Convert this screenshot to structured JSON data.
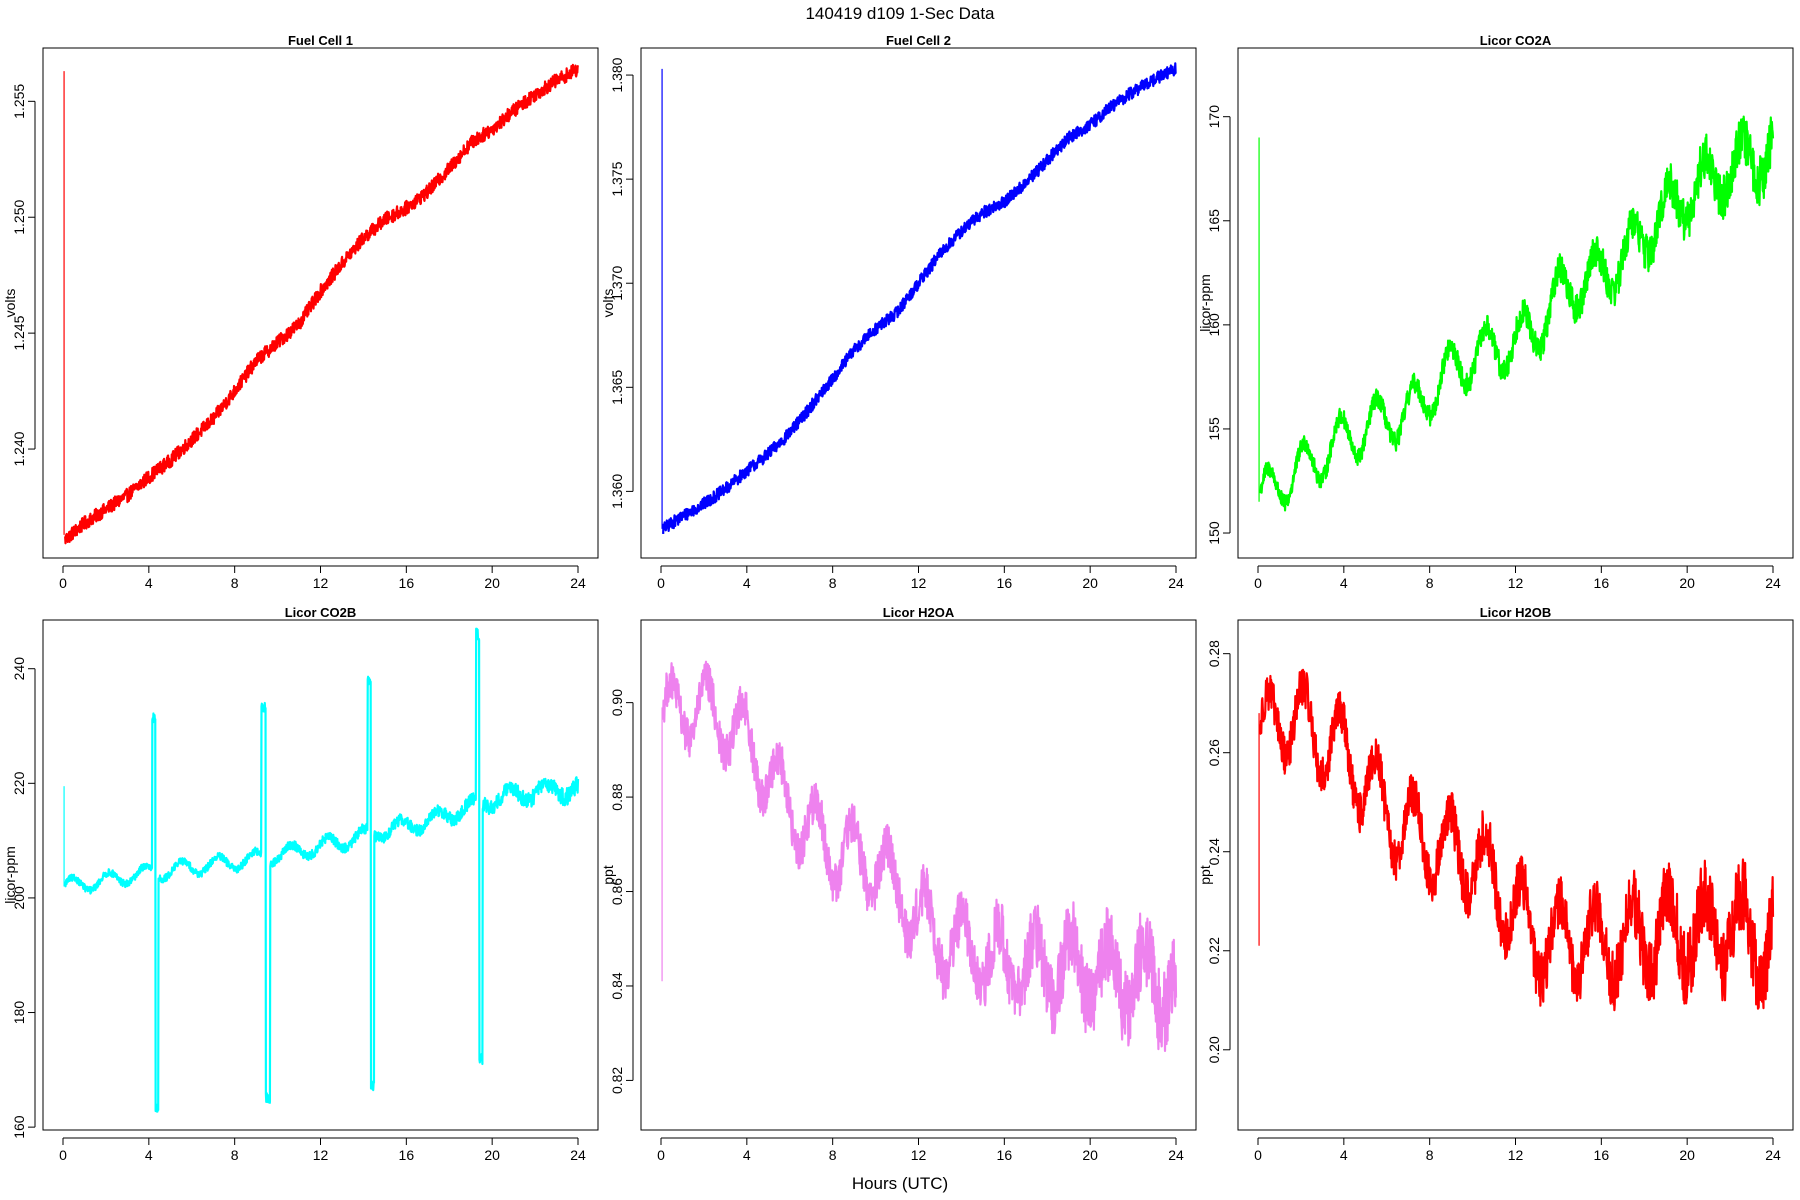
{
  "figure": {
    "title": "140419   d109   1-Sec Data",
    "xlabel": "Hours (UTC)"
  },
  "chart_data": [
    {
      "type": "line",
      "title": "Fuel Cell 1",
      "ylabel": "volts",
      "color": "#ff0000",
      "xlim": [
        0,
        24
      ],
      "ylim": [
        1.2353,
        1.2573
      ],
      "xticks": [
        0,
        4,
        8,
        12,
        16,
        20,
        24
      ],
      "yticks": [
        1.24,
        1.245,
        1.25,
        1.255
      ],
      "spike": {
        "x": 0.05,
        "y_from": 1.2363,
        "y_to": 1.2563
      },
      "x": [
        0.1,
        1,
        2,
        3,
        4,
        5,
        6,
        7,
        8,
        9,
        10,
        11,
        12,
        13,
        14,
        15,
        16,
        17,
        18,
        19,
        20,
        21,
        22,
        23,
        24
      ],
      "y": [
        1.2361,
        1.2368,
        1.2374,
        1.238,
        1.2388,
        1.2395,
        1.2404,
        1.2413,
        1.2425,
        1.2438,
        1.2446,
        1.2454,
        1.2468,
        1.248,
        1.2491,
        1.2499,
        1.2504,
        1.2511,
        1.2521,
        1.2532,
        1.2538,
        1.2546,
        1.2553,
        1.2559,
        1.2564
      ],
      "noise": 0.0003,
      "osc_amp": 0,
      "osc_period": 2
    },
    {
      "type": "line",
      "title": "Fuel Cell 2",
      "ylabel": "volts",
      "color": "#0000ff",
      "xlim": [
        0,
        24
      ],
      "ylim": [
        1.3568,
        1.3813
      ],
      "xticks": [
        0,
        4,
        8,
        12,
        16,
        20,
        24
      ],
      "yticks": [
        1.36,
        1.365,
        1.37,
        1.375,
        1.38
      ],
      "spike": {
        "x": 0.05,
        "y_from": 1.3582,
        "y_to": 1.3803
      },
      "x": [
        0.1,
        1,
        2,
        3,
        4,
        5,
        6,
        7,
        8,
        9,
        10,
        11,
        12,
        13,
        14,
        15,
        16,
        17,
        18,
        19,
        20,
        21,
        22,
        23,
        24
      ],
      "y": [
        1.3582,
        1.3588,
        1.3594,
        1.3601,
        1.361,
        1.3618,
        1.3628,
        1.3641,
        1.3654,
        1.3668,
        1.3678,
        1.3686,
        1.37,
        1.3714,
        1.3725,
        1.3734,
        1.3739,
        1.3748,
        1.3759,
        1.377,
        1.3776,
        1.3785,
        1.3792,
        1.3798,
        1.3803
      ],
      "noise": 0.0003,
      "osc_amp": 0,
      "osc_period": 2
    },
    {
      "type": "line",
      "title": "Licor CO2A",
      "ylabel": "licor-ppm",
      "color": "#00ff00",
      "xlim": [
        0,
        24
      ],
      "ylim": [
        148.8,
        173.3
      ],
      "xticks": [
        0,
        4,
        8,
        12,
        16,
        20,
        24
      ],
      "yticks": [
        150,
        155,
        160,
        165,
        170
      ],
      "spike": {
        "x": 0.05,
        "y_from": 151.5,
        "y_to": 169.0
      },
      "x": [
        0.1,
        1,
        2,
        3,
        4,
        5,
        6,
        7,
        8,
        9,
        10,
        11,
        12,
        13,
        14,
        15,
        16,
        17,
        18,
        19,
        20,
        21,
        22,
        23,
        24
      ],
      "y": [
        151.5,
        152.5,
        153.0,
        153.8,
        154.5,
        155.0,
        155.5,
        155.7,
        156.8,
        157.8,
        158.5,
        158.8,
        159.2,
        159.8,
        161.5,
        162.0,
        162.5,
        163.2,
        164.3,
        165.5,
        166.2,
        167.0,
        167.5,
        168.0,
        168.3
      ],
      "noise": 0.4,
      "noise_growth": 2.2,
      "osc_amp": 1.2,
      "osc_period": 1.7
    },
    {
      "type": "line",
      "title": "Licor CO2B",
      "ylabel": "licor-ppm",
      "color": "#00ffff",
      "xlim": [
        0,
        24
      ],
      "ylim": [
        159.5,
        248.5
      ],
      "xticks": [
        0,
        4,
        8,
        12,
        16,
        20,
        24
      ],
      "yticks": [
        160,
        180,
        200,
        220,
        240
      ],
      "spike": {
        "x": 0.05,
        "y_from": 202.0,
        "y_to": 219.5
      },
      "x": [
        0.1,
        1,
        2,
        3,
        4,
        5,
        6,
        7,
        8,
        9,
        10,
        11,
        12,
        13,
        14,
        15,
        16,
        17,
        18,
        19,
        20,
        21,
        22,
        23,
        24
      ],
      "y": [
        202.0,
        202.5,
        203.0,
        203.8,
        204.3,
        204.8,
        205.4,
        205.8,
        206.3,
        206.8,
        207.5,
        208.2,
        209.0,
        209.8,
        210.8,
        211.8,
        212.6,
        213.4,
        214.6,
        216.0,
        217.2,
        218.0,
        218.5,
        218.8,
        219.0
      ],
      "noise": 0.6,
      "noise_growth": 1.6,
      "osc_amp": 1.3,
      "osc_period": 1.7,
      "calibrations": [
        {
          "x0": 4.15,
          "x1": 4.45,
          "high": 231.5,
          "low": 163.0
        },
        {
          "x0": 9.25,
          "x1": 9.65,
          "high": 233.5,
          "low": 165.0
        },
        {
          "x0": 14.2,
          "x1": 14.5,
          "high": 238.0,
          "low": 167.0
        },
        {
          "x0": 19.25,
          "x1": 19.55,
          "high": 246.0,
          "low": 172.0
        }
      ]
    },
    {
      "type": "line",
      "title": "Licor H2OA",
      "ylabel": "ppt",
      "color": "#ee82ee",
      "xlim": [
        0,
        24
      ],
      "ylim": [
        0.8095,
        0.9175
      ],
      "xticks": [
        0,
        4,
        8,
        12,
        16,
        20,
        24
      ],
      "yticks": [
        0.82,
        0.84,
        0.86,
        0.88,
        0.9
      ],
      "spike": {
        "x": 0.05,
        "y_from": 0.841,
        "y_to": 0.899
      },
      "x": [
        0.1,
        1,
        2,
        3,
        4,
        5,
        6,
        7,
        8,
        9,
        10,
        11,
        12,
        13,
        14,
        15,
        16,
        17,
        18,
        19,
        20,
        21,
        22,
        23,
        24
      ],
      "y": [
        0.896,
        0.9,
        0.898,
        0.896,
        0.892,
        0.885,
        0.878,
        0.873,
        0.869,
        0.867,
        0.866,
        0.86,
        0.855,
        0.85,
        0.848,
        0.846,
        0.845,
        0.844,
        0.844,
        0.844,
        0.843,
        0.842,
        0.842,
        0.841,
        0.84
      ],
      "noise": 0.004,
      "noise_growth": 1.4,
      "osc_amp": 0.007,
      "osc_period": 1.7
    },
    {
      "type": "line",
      "title": "Licor H2OB",
      "ylabel": "ppt",
      "color": "#ff0000",
      "xlim": [
        0,
        24
      ],
      "ylim": [
        0.1838,
        0.2868
      ],
      "xticks": [
        0,
        4,
        8,
        12,
        16,
        20,
        24
      ],
      "yticks": [
        0.2,
        0.22,
        0.24,
        0.26,
        0.28
      ],
      "spike": {
        "x": 0.05,
        "y_from": 0.221,
        "y_to": 0.268
      },
      "x": [
        0.1,
        1,
        2,
        3,
        4,
        5,
        6,
        7,
        8,
        9,
        10,
        11,
        12,
        13,
        14,
        15,
        16,
        17,
        18,
        19,
        20,
        21,
        22,
        23,
        24
      ],
      "y": [
        0.262,
        0.268,
        0.266,
        0.263,
        0.26,
        0.254,
        0.248,
        0.244,
        0.242,
        0.24,
        0.239,
        0.234,
        0.228,
        0.222,
        0.222,
        0.222,
        0.221,
        0.222,
        0.223,
        0.224,
        0.224,
        0.224,
        0.224,
        0.223,
        0.222
      ],
      "noise": 0.004,
      "noise_growth": 1.2,
      "osc_amp": 0.008,
      "osc_period": 1.7
    }
  ]
}
